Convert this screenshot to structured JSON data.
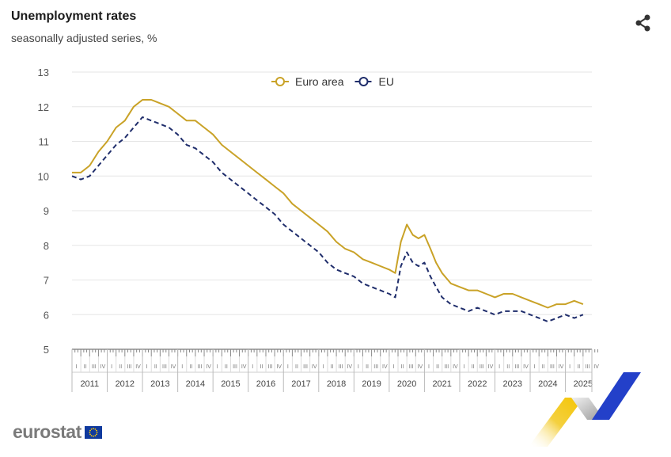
{
  "header": {
    "title": "Unemployment rates",
    "subtitle": "seasonally adjusted series, %",
    "share_icon": "share-icon"
  },
  "footer": {
    "logo_text": "eurostat",
    "flag_icon": "eu-flag-icon"
  },
  "chart_data": {
    "type": "line",
    "title": "Unemployment rates",
    "subtitle": "seasonally adjusted series, %",
    "xlabel": "",
    "ylabel": "",
    "ylim": [
      5,
      13
    ],
    "yticks": [
      5,
      6,
      7,
      8,
      9,
      10,
      11,
      12,
      13
    ],
    "quarter_labels": [
      "I",
      "II",
      "III",
      "IV"
    ],
    "years": [
      "2011",
      "2012",
      "2013",
      "2014",
      "2015",
      "2016",
      "2017",
      "2018",
      "2019",
      "2020",
      "2021",
      "2022",
      "2023",
      "2024",
      "2025"
    ],
    "grid": true,
    "legend_position": "top-center",
    "x_format": "year.month (monthly observations)",
    "series": [
      {
        "name": "Euro area",
        "color": "#c9a227",
        "dash": "solid",
        "x": [
          2011.0,
          2011.25,
          2011.5,
          2011.75,
          2012.0,
          2012.25,
          2012.5,
          2012.75,
          2013.0,
          2013.25,
          2013.5,
          2013.75,
          2014.0,
          2014.25,
          2014.5,
          2014.75,
          2015.0,
          2015.25,
          2015.5,
          2015.75,
          2016.0,
          2016.25,
          2016.5,
          2016.75,
          2017.0,
          2017.25,
          2017.5,
          2017.75,
          2018.0,
          2018.25,
          2018.5,
          2018.75,
          2019.0,
          2019.25,
          2019.5,
          2019.75,
          2020.0,
          2020.17,
          2020.33,
          2020.5,
          2020.67,
          2020.83,
          2021.0,
          2021.17,
          2021.33,
          2021.5,
          2021.75,
          2022.0,
          2022.25,
          2022.5,
          2022.75,
          2023.0,
          2023.25,
          2023.5,
          2023.75,
          2024.0,
          2024.25,
          2024.5,
          2024.75,
          2025.0,
          2025.25,
          2025.5
        ],
        "y": [
          10.1,
          10.1,
          10.3,
          10.7,
          11.0,
          11.4,
          11.6,
          12.0,
          12.2,
          12.2,
          12.1,
          12.0,
          11.8,
          11.6,
          11.6,
          11.4,
          11.2,
          10.9,
          10.7,
          10.5,
          10.3,
          10.1,
          9.9,
          9.7,
          9.5,
          9.2,
          9.0,
          8.8,
          8.6,
          8.4,
          8.1,
          7.9,
          7.8,
          7.6,
          7.5,
          7.4,
          7.3,
          7.2,
          8.1,
          8.6,
          8.3,
          8.2,
          8.3,
          7.9,
          7.5,
          7.2,
          6.9,
          6.8,
          6.7,
          6.7,
          6.6,
          6.5,
          6.6,
          6.6,
          6.5,
          6.4,
          6.3,
          6.2,
          6.3,
          6.3,
          6.4,
          6.3
        ]
      },
      {
        "name": "EU",
        "color": "#1f2d6b",
        "dash": "dashed",
        "x": [
          2011.0,
          2011.25,
          2011.5,
          2011.75,
          2012.0,
          2012.25,
          2012.5,
          2012.75,
          2013.0,
          2013.25,
          2013.5,
          2013.75,
          2014.0,
          2014.25,
          2014.5,
          2014.75,
          2015.0,
          2015.25,
          2015.5,
          2015.75,
          2016.0,
          2016.25,
          2016.5,
          2016.75,
          2017.0,
          2017.25,
          2017.5,
          2017.75,
          2018.0,
          2018.25,
          2018.5,
          2018.75,
          2019.0,
          2019.25,
          2019.5,
          2019.75,
          2020.0,
          2020.17,
          2020.33,
          2020.5,
          2020.67,
          2020.83,
          2021.0,
          2021.17,
          2021.33,
          2021.5,
          2021.75,
          2022.0,
          2022.25,
          2022.5,
          2022.75,
          2023.0,
          2023.25,
          2023.5,
          2023.75,
          2024.0,
          2024.25,
          2024.5,
          2024.75,
          2025.0,
          2025.25,
          2025.5
        ],
        "y": [
          10.0,
          9.9,
          10.0,
          10.3,
          10.6,
          10.9,
          11.1,
          11.4,
          11.7,
          11.6,
          11.5,
          11.4,
          11.2,
          10.9,
          10.8,
          10.6,
          10.4,
          10.1,
          9.9,
          9.7,
          9.5,
          9.3,
          9.1,
          8.9,
          8.6,
          8.4,
          8.2,
          8.0,
          7.8,
          7.5,
          7.3,
          7.2,
          7.1,
          6.9,
          6.8,
          6.7,
          6.6,
          6.5,
          7.4,
          7.8,
          7.5,
          7.4,
          7.5,
          7.1,
          6.8,
          6.5,
          6.3,
          6.2,
          6.1,
          6.2,
          6.1,
          6.0,
          6.1,
          6.1,
          6.1,
          6.0,
          5.9,
          5.8,
          5.9,
          6.0,
          5.9,
          6.0
        ]
      }
    ]
  }
}
